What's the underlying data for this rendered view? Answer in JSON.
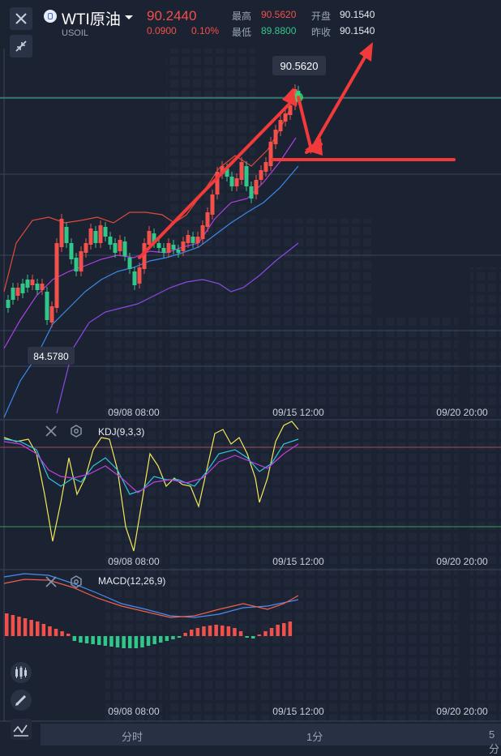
{
  "header": {
    "name": "WTI原油",
    "symbol": "USOIL",
    "price": "90.2440",
    "change": "0.0900",
    "change_pct": "0.10%",
    "high_label": "最高",
    "high_value": "90.5620",
    "low_label": "最低",
    "low_value": "89.8800",
    "open_label": "开盘",
    "open_value": "90.1540",
    "prev_label": "昨收",
    "prev_value": "90.1540"
  },
  "main_chart": {
    "max_label": "90.5620",
    "min_label": "84.5780",
    "x_labels": [
      "09/08 08:00",
      "09/15 12:00",
      "09/20 20:00"
    ]
  },
  "kdj": {
    "title": "KDJ(9,3,3)",
    "x_labels": [
      "09/08 08:00",
      "09/15 12:00",
      "09/20 20:00"
    ]
  },
  "macd": {
    "title": "MACD(12,26,9)",
    "x_labels": [
      "09/08 08:00",
      "09/15 12:00",
      "09/20 20:00"
    ]
  },
  "tabs": [
    "分时",
    "1分",
    "5分"
  ],
  "icons": {
    "close": "close-icon",
    "shrink": "shrink-icon",
    "candles": "candles-icon",
    "pencil": "pencil-icon",
    "indicator": "indicator-icon",
    "settings": "gear-icon"
  },
  "colors": {
    "up": "#f2504b",
    "down": "#32c78a",
    "k_line": "#f3e85a",
    "d_line": "#2ec4e0",
    "j_line": "#c040e0",
    "dif": "#4a8cf0",
    "dea": "#f0604a",
    "annotation": "#f23a3a"
  }
}
